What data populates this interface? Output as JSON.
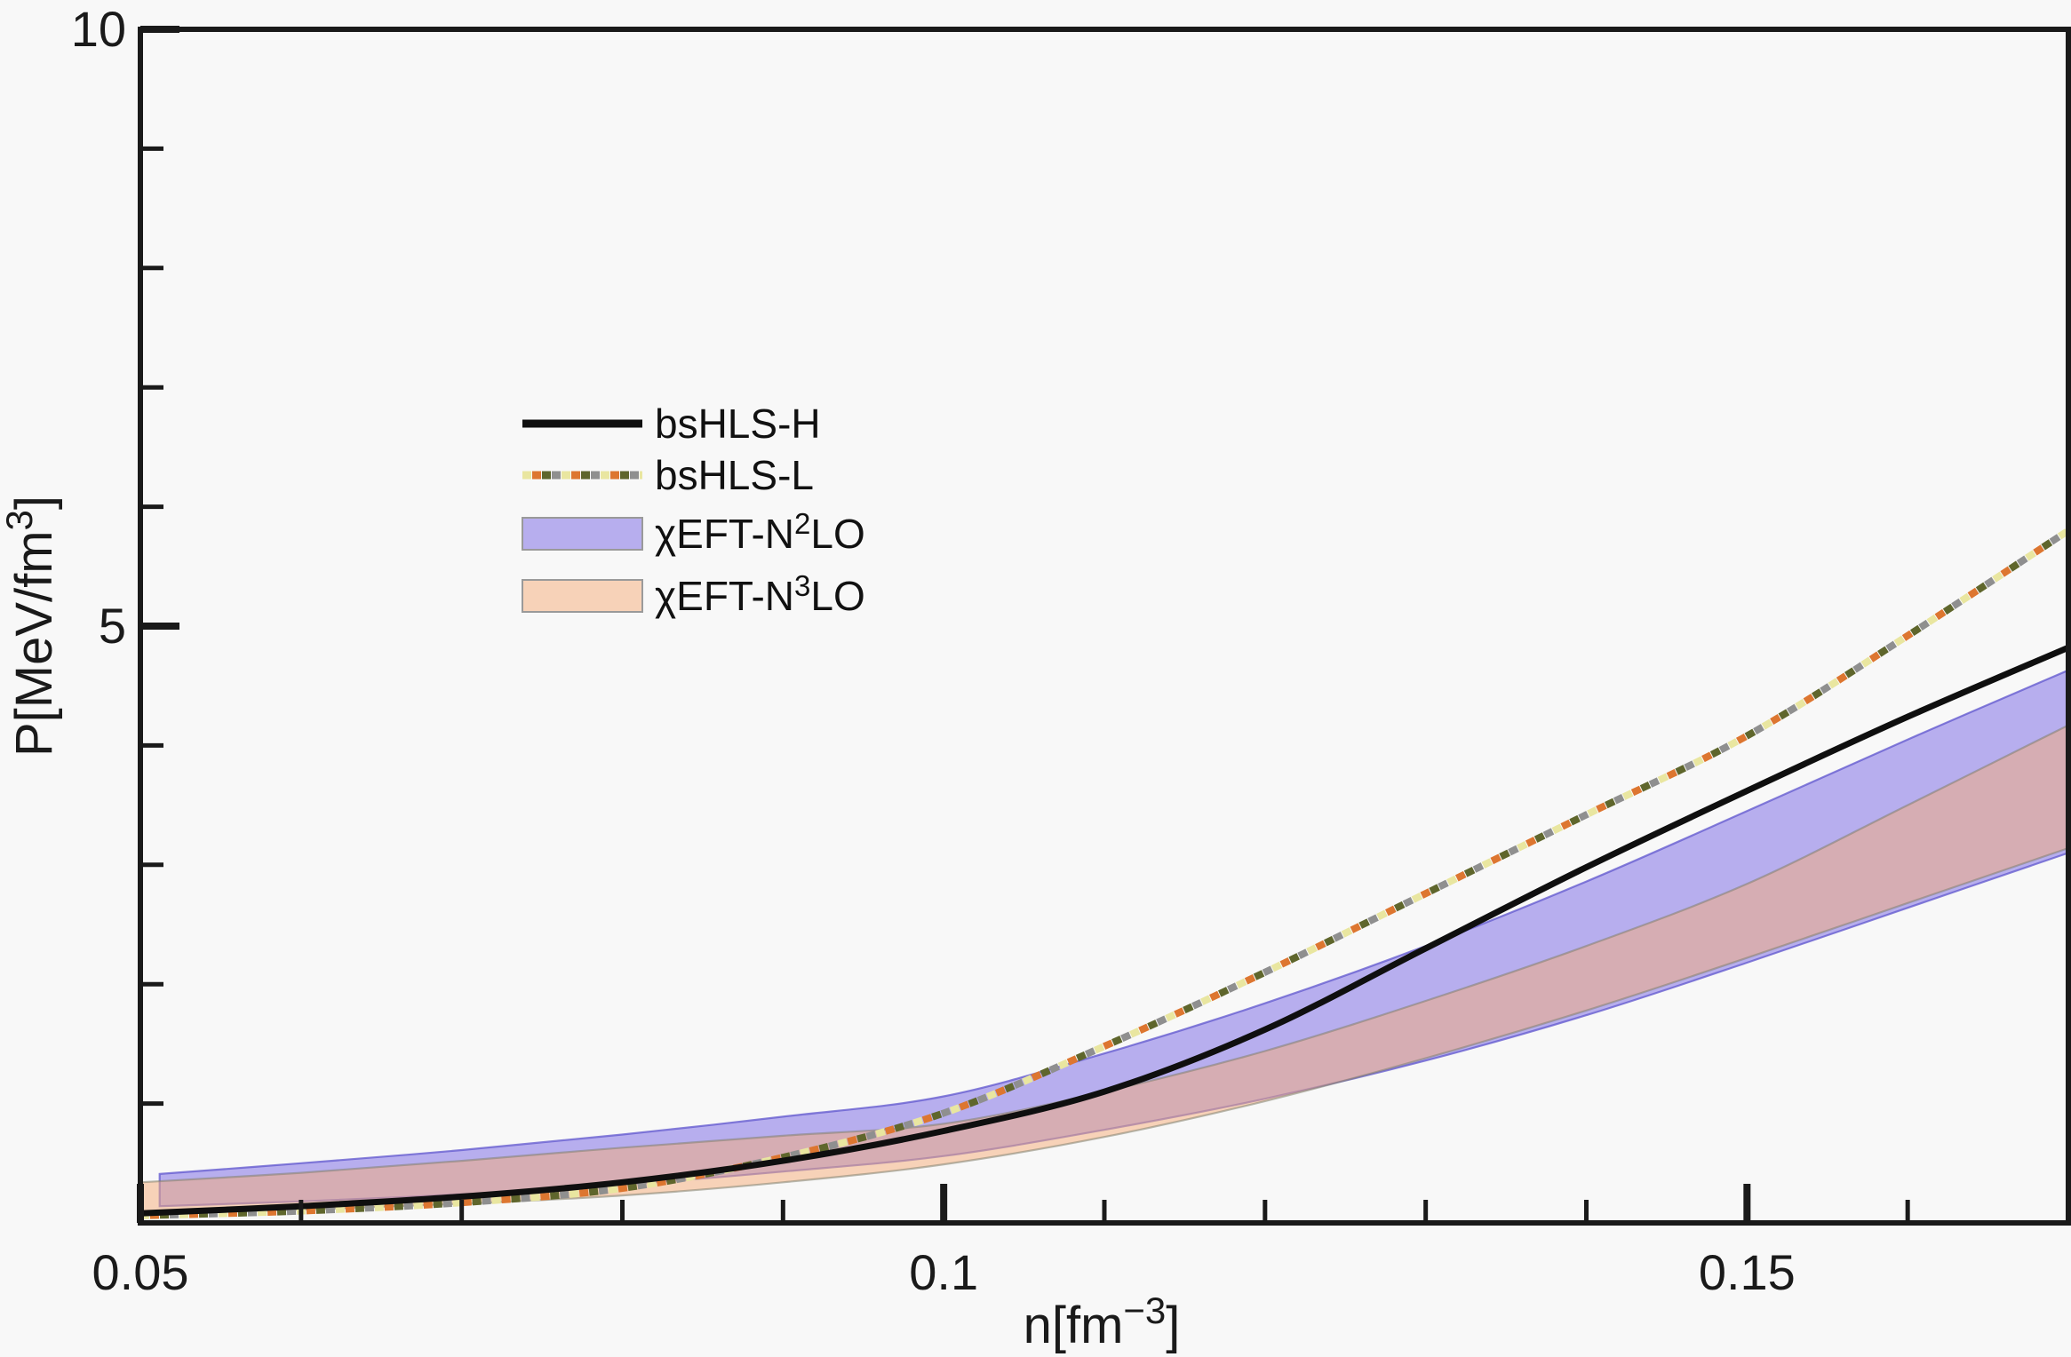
{
  "chart_data": {
    "type": "line",
    "title": "",
    "xlabel": {
      "pre": "n[fm",
      "sup": "−3",
      "post": "]"
    },
    "ylabel": {
      "pre": "P[MeV/fm",
      "sup": "3",
      "post": "]"
    },
    "xlim": [
      0.05,
      0.17
    ],
    "ylim": [
      0,
      10
    ],
    "grid": false,
    "frame": true,
    "background": "#f8f8f8",
    "axis_color": "#1a1a1a",
    "x": [
      0.05,
      0.06,
      0.07,
      0.08,
      0.09,
      0.1,
      0.11,
      0.12,
      0.13,
      0.14,
      0.15,
      0.16,
      0.17
    ],
    "series": [
      {
        "name": "chiEFT-N2LO",
        "kind": "band",
        "label": {
          "pre": "χEFT-N",
          "sup": "2",
          "post": "LO"
        },
        "fill": "#b7aeee",
        "edge": "rgba(95,85,205,0.75)",
        "x": [
          0.0512,
          0.06,
          0.07,
          0.08,
          0.09,
          0.1,
          0.11,
          0.12,
          0.13,
          0.14,
          0.15,
          0.16,
          0.17
        ],
        "lower": [
          0.14,
          0.18,
          0.24,
          0.32,
          0.43,
          0.56,
          0.78,
          1.04,
          1.36,
          1.74,
          2.18,
          2.64,
          3.1
        ],
        "upper": [
          0.41,
          0.5,
          0.61,
          0.74,
          0.89,
          1.06,
          1.42,
          1.84,
          2.32,
          2.86,
          3.45,
          4.05,
          4.63
        ]
      },
      {
        "name": "chiEFT-N3LO",
        "kind": "band",
        "label": {
          "pre": "χEFT-N",
          "sup": "3",
          "post": "LO"
        },
        "fill": "rgba(245,172,120,0.5)",
        "edge": "rgba(130,128,110,0.55)",
        "x": [
          0.05,
          0.06,
          0.07,
          0.08,
          0.09,
          0.1,
          0.11,
          0.12,
          0.13,
          0.14,
          0.15,
          0.16,
          0.17
        ],
        "lower": [
          0.08,
          0.11,
          0.16,
          0.23,
          0.34,
          0.49,
          0.72,
          1.02,
          1.38,
          1.78,
          2.22,
          2.68,
          3.14
        ],
        "upper": [
          0.34,
          0.42,
          0.52,
          0.63,
          0.73,
          0.83,
          1.1,
          1.44,
          1.86,
          2.32,
          2.84,
          3.5,
          4.17
        ]
      },
      {
        "name": "bsHLS-L",
        "kind": "line",
        "label": {
          "pre": "bsHLS-L",
          "sup": "",
          "post": ""
        },
        "dash": "dotted-multicolor",
        "colors": [
          "#e9e6a0",
          "#dd7630",
          "#5f662c",
          "#8f8f8f"
        ],
        "width": 8,
        "values": [
          0.06,
          0.1,
          0.17,
          0.29,
          0.55,
          0.92,
          1.48,
          2.1,
          2.76,
          3.42,
          4.08,
          4.92,
          5.8
        ]
      },
      {
        "name": "bsHLS-H",
        "kind": "line",
        "label": {
          "pre": "bsHLS-H",
          "sup": "",
          "post": ""
        },
        "dash": "solid",
        "color": "#0f0f0f",
        "width": 7,
        "values": [
          0.08,
          0.14,
          0.22,
          0.34,
          0.52,
          0.77,
          1.1,
          1.62,
          2.3,
          2.98,
          3.62,
          4.24,
          4.82
        ]
      }
    ],
    "xticks": {
      "major": [
        {
          "v": 0.05,
          "label": "0.05"
        },
        {
          "v": 0.1,
          "label": "0.1"
        },
        {
          "v": 0.15,
          "label": "0.15"
        }
      ],
      "minor": [
        0.06,
        0.07,
        0.08,
        0.09,
        0.11,
        0.12,
        0.13,
        0.14,
        0.16
      ]
    },
    "yticks": {
      "major": [
        {
          "v": 10,
          "label": "10"
        },
        {
          "v": 5,
          "label": "5"
        }
      ],
      "minor": [
        1,
        2,
        3,
        4,
        6,
        7,
        8,
        9
      ]
    },
    "legend": {
      "position": "upper-left-inside",
      "order": [
        "bsHLS-H",
        "bsHLS-L",
        "chiEFT-N2LO",
        "chiEFT-N3LO"
      ]
    }
  }
}
